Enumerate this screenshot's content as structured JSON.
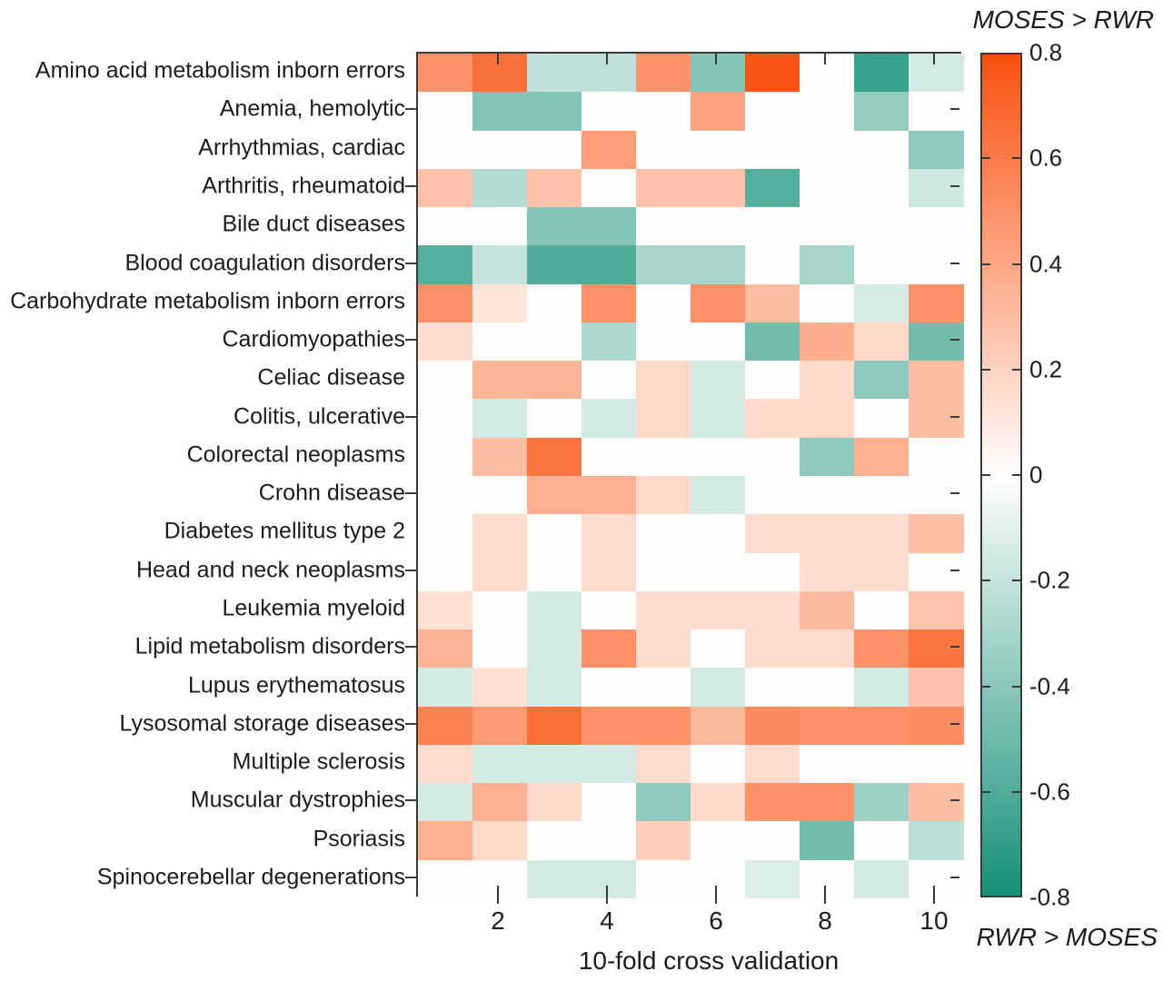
{
  "figure": {
    "background": "#ffffff",
    "axis_color": "#3a3a3a",
    "text_color": "#1c1c1c"
  },
  "chart_data": {
    "type": "heatmap",
    "title": "",
    "xlabel": "10-fold cross validation",
    "ylabel": "",
    "x_tick_labels": [
      "2",
      "4",
      "6",
      "8",
      "10"
    ],
    "x_tick_values": [
      2,
      4,
      6,
      8,
      10
    ],
    "x_range": [
      1,
      10
    ],
    "n_columns": 10,
    "grid": "off",
    "rows": [
      "Amino acid metabolism inborn errors",
      "Anemia, hemolytic",
      "Arrhythmias, cardiac",
      "Arthritis, rheumatoid",
      "Bile duct diseases",
      "Blood coagulation disorders",
      "Carbohydrate metabolism inborn errors",
      "Cardiomyopathies",
      "Celiac disease",
      "Colitis, ulcerative",
      "Colorectal neoplasms",
      "Crohn disease",
      "Diabetes mellitus type 2",
      "Head and neck neoplasms",
      "Leukemia myeloid",
      "Lipid metabolism disorders",
      "Lupus erythematosus",
      "Lysosomal storage diseases",
      "Multiple sclerosis",
      "Muscular dystrophies",
      "Psoriasis",
      "Spinocerebellar degenerations"
    ],
    "values": [
      [
        0.5,
        0.65,
        -0.22,
        -0.22,
        0.5,
        -0.42,
        0.78,
        0,
        -0.68,
        -0.15
      ],
      [
        0,
        -0.42,
        -0.42,
        0,
        0,
        0.42,
        0,
        0,
        -0.36,
        0
      ],
      [
        0,
        0,
        0,
        0.44,
        0,
        0,
        0,
        0,
        0,
        -0.38
      ],
      [
        0.28,
        -0.26,
        0.28,
        0,
        0.28,
        0.28,
        -0.58,
        0,
        0,
        -0.17
      ],
      [
        0,
        0,
        -0.42,
        -0.42,
        0,
        0,
        0,
        0,
        0,
        0
      ],
      [
        -0.58,
        -0.2,
        -0.6,
        -0.6,
        -0.3,
        -0.3,
        0,
        -0.3,
        0,
        0
      ],
      [
        0.5,
        0.12,
        0,
        0.5,
        0,
        0.5,
        0.3,
        0,
        -0.14,
        0.5
      ],
      [
        0.15,
        0,
        0,
        -0.28,
        0,
        0,
        -0.48,
        0.37,
        0.17,
        -0.48
      ],
      [
        0,
        0.34,
        0.34,
        0,
        0.17,
        -0.15,
        0,
        0.17,
        -0.38,
        0.3
      ],
      [
        0,
        -0.15,
        0,
        -0.15,
        0.17,
        -0.15,
        0.17,
        0.17,
        0,
        0.3
      ],
      [
        0,
        0.3,
        0.63,
        0,
        0,
        0,
        0,
        -0.38,
        0.36,
        0
      ],
      [
        0,
        0,
        0.36,
        0.36,
        0.17,
        -0.15,
        0,
        0,
        0,
        0
      ],
      [
        0,
        0.16,
        0,
        0.16,
        0,
        0,
        0.15,
        0.15,
        0.15,
        0.29
      ],
      [
        0,
        0.16,
        0,
        0.16,
        0,
        0,
        0,
        0.15,
        0.15,
        0
      ],
      [
        0.14,
        0,
        -0.15,
        0,
        0.15,
        0.15,
        0.15,
        0.31,
        0,
        0.27
      ],
      [
        0.35,
        0,
        -0.15,
        0.5,
        0.16,
        0,
        0.16,
        0.16,
        0.5,
        0.63
      ],
      [
        -0.15,
        0.14,
        -0.15,
        0,
        0,
        -0.15,
        0,
        0,
        -0.15,
        0.28
      ],
      [
        0.57,
        0.46,
        0.66,
        0.5,
        0.5,
        0.32,
        0.53,
        0.5,
        0.5,
        0.52
      ],
      [
        0.16,
        -0.15,
        -0.15,
        -0.15,
        0.16,
        0,
        0.16,
        0,
        0,
        0
      ],
      [
        -0.15,
        0.36,
        0.17,
        0,
        -0.38,
        0.17,
        0.5,
        0.5,
        -0.33,
        0.3
      ],
      [
        0.36,
        0.17,
        0,
        0,
        0.22,
        0,
        0,
        -0.48,
        0,
        -0.23
      ],
      [
        0,
        0,
        -0.15,
        -0.15,
        0,
        0,
        -0.12,
        0,
        -0.15,
        0
      ]
    ],
    "colorbar": {
      "max": 0.8,
      "min": -0.8,
      "tick_labels": [
        "0.8",
        "0.6",
        "0.4",
        "0.2",
        "0",
        "-0.2",
        "-0.4",
        "-0.6",
        "-0.8"
      ],
      "top_label": "MOSES > RWR",
      "bottom_label": "RWR > MOSES",
      "positive_color": "#f8500d",
      "zero_color": "#fffefd",
      "negative_color": "#159178"
    }
  }
}
